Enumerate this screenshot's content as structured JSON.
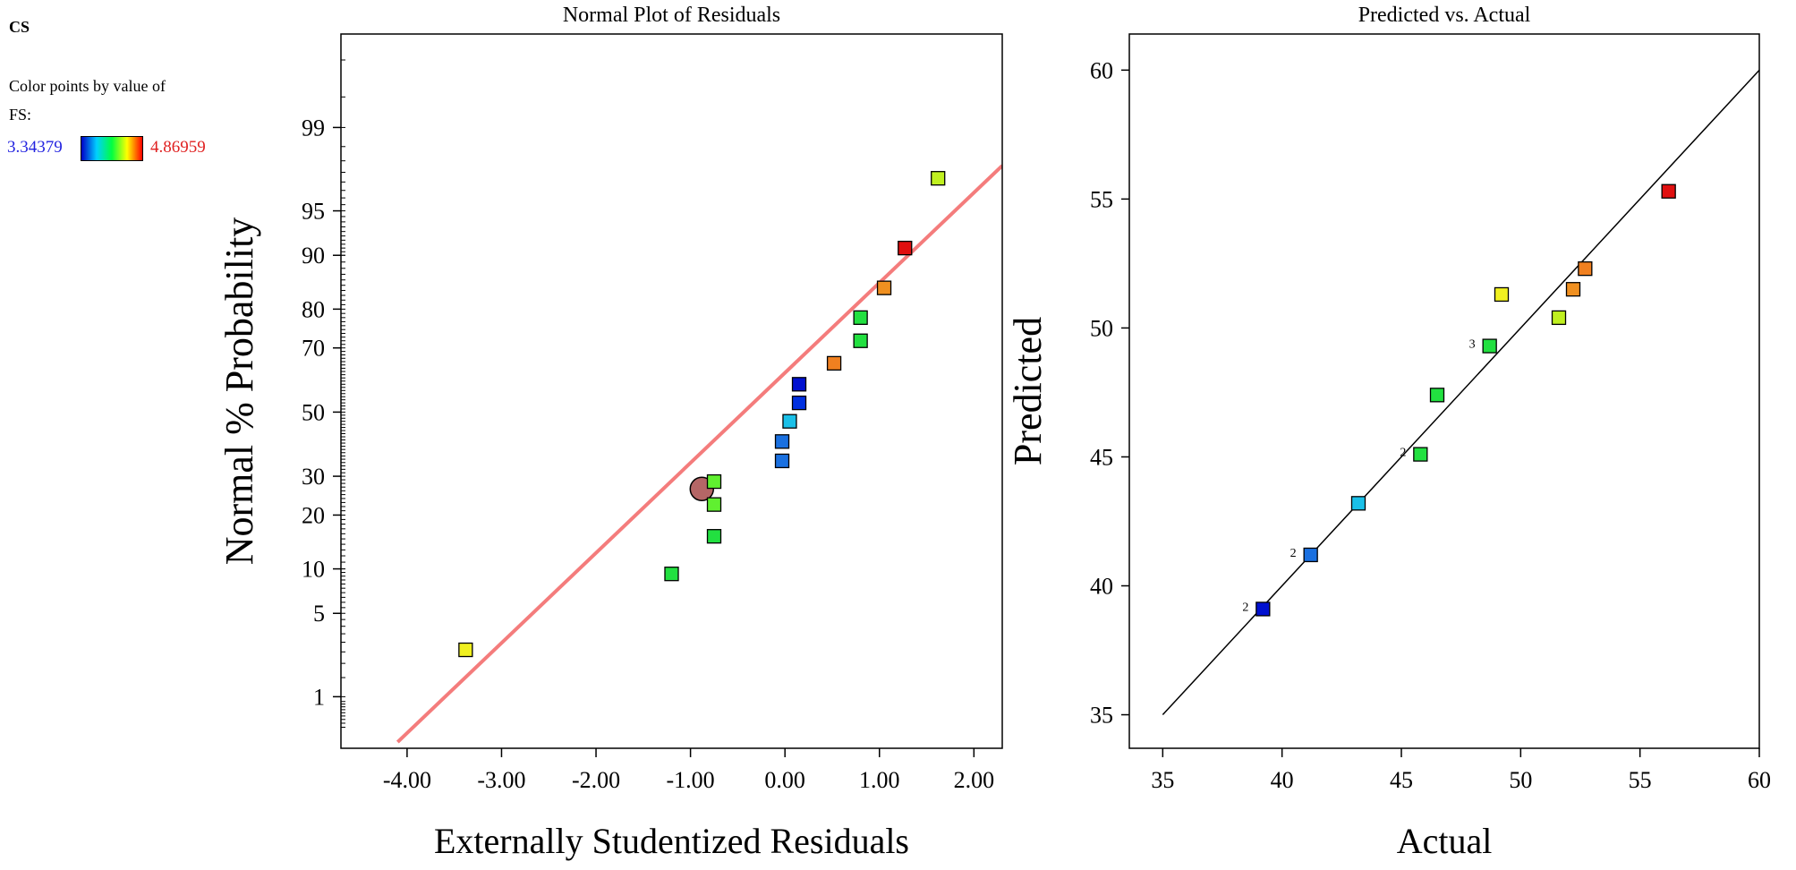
{
  "legend": {
    "title": "CS",
    "line1": "Color points by value of",
    "line2": "FS:",
    "min_label": "3.34379",
    "max_label": "4.86959",
    "gradient_colors": [
      "#0000c8",
      "#00d0ff",
      "#00ff40",
      "#ffff00",
      "#ff0000"
    ]
  },
  "chart_data": [
    {
      "type": "scatter",
      "title": "Normal Plot of Residuals",
      "xlabel": "Externally Studentized Residuals",
      "ylabel": "Normal % Probability",
      "xlim": [
        -4.7,
        2.3
      ],
      "ylim_percent": [
        0.3,
        99.9
      ],
      "y_scale": "normal-probability",
      "x_ticks": [
        -4.0,
        -3.0,
        -2.0,
        -1.0,
        0.0,
        1.0,
        2.0
      ],
      "x_tick_labels": [
        "-4.00",
        "-3.00",
        "-2.00",
        "-1.00",
        "0.00",
        "1.00",
        "2.00"
      ],
      "y_ticks": [
        1,
        5,
        10,
        20,
        30,
        50,
        70,
        80,
        90,
        95,
        99
      ],
      "y_tick_labels": [
        "1",
        "5",
        "10",
        "20",
        "30",
        "50",
        "70",
        "80",
        "90",
        "95",
        "99"
      ],
      "fit_line": {
        "color": "#f47c7c",
        "points": [
          [
            -4.1,
            0.35
          ],
          [
            2.3,
            97.8
          ]
        ]
      },
      "highlight_point": {
        "x": -0.88,
        "y": 26.5,
        "color": "#b56666"
      },
      "points": [
        {
          "x": -3.38,
          "y": 2.6,
          "color": "#f0f020"
        },
        {
          "x": -1.2,
          "y": 9.3,
          "color": "#22e040"
        },
        {
          "x": -0.75,
          "y": 15.5,
          "color": "#22e040"
        },
        {
          "x": -0.75,
          "y": 22.5,
          "color": "#60f030"
        },
        {
          "x": -0.75,
          "y": 28.5,
          "color": "#60f030"
        },
        {
          "x": -0.03,
          "y": 34.5,
          "color": "#1a70e0"
        },
        {
          "x": -0.03,
          "y": 40.5,
          "color": "#1a70e0"
        },
        {
          "x": 0.05,
          "y": 47,
          "color": "#1ac0e8"
        },
        {
          "x": 0.15,
          "y": 53,
          "color": "#0030e0"
        },
        {
          "x": 0.15,
          "y": 59,
          "color": "#0010d0"
        },
        {
          "x": 0.52,
          "y": 65.5,
          "color": "#f08020"
        },
        {
          "x": 0.8,
          "y": 72,
          "color": "#22e040"
        },
        {
          "x": 0.8,
          "y": 78,
          "color": "#22e040"
        },
        {
          "x": 1.05,
          "y": 84.5,
          "color": "#f09020"
        },
        {
          "x": 1.27,
          "y": 91,
          "color": "#e01010"
        },
        {
          "x": 1.62,
          "y": 97.2,
          "color": "#c0f020"
        }
      ]
    },
    {
      "type": "scatter",
      "title": "Predicted vs. Actual",
      "xlabel": "Actual",
      "ylabel": "Predicted",
      "xlim": [
        33.6,
        60.0
      ],
      "ylim": [
        33.7,
        61.4
      ],
      "x_ticks": [
        35,
        40,
        45,
        50,
        55,
        60
      ],
      "x_tick_labels": [
        "35",
        "40",
        "45",
        "50",
        "55",
        "60"
      ],
      "y_ticks": [
        35,
        40,
        45,
        50,
        55,
        60
      ],
      "y_tick_labels": [
        "35",
        "40",
        "45",
        "50",
        "55",
        "60"
      ],
      "reference_line": {
        "points": [
          [
            35,
            35
          ],
          [
            60,
            60
          ]
        ]
      },
      "points": [
        {
          "x": 39.2,
          "y": 39.1,
          "color": "#0010d0",
          "label": "2"
        },
        {
          "x": 41.2,
          "y": 41.2,
          "color": "#1a70e0",
          "label": "2"
        },
        {
          "x": 43.2,
          "y": 43.2,
          "color": "#1ac0e8",
          "label": ""
        },
        {
          "x": 45.8,
          "y": 45.1,
          "color": "#22e040",
          "label": "2"
        },
        {
          "x": 46.5,
          "y": 47.4,
          "color": "#22e040",
          "label": ""
        },
        {
          "x": 48.7,
          "y": 49.3,
          "color": "#22e040",
          "label": "3"
        },
        {
          "x": 49.2,
          "y": 51.3,
          "color": "#f0f020",
          "label": ""
        },
        {
          "x": 51.6,
          "y": 50.4,
          "color": "#c0f020",
          "label": ""
        },
        {
          "x": 52.2,
          "y": 51.5,
          "color": "#f09020",
          "label": ""
        },
        {
          "x": 52.7,
          "y": 52.3,
          "color": "#f08020",
          "label": ""
        },
        {
          "x": 56.2,
          "y": 55.3,
          "color": "#e01010",
          "label": ""
        }
      ]
    }
  ]
}
